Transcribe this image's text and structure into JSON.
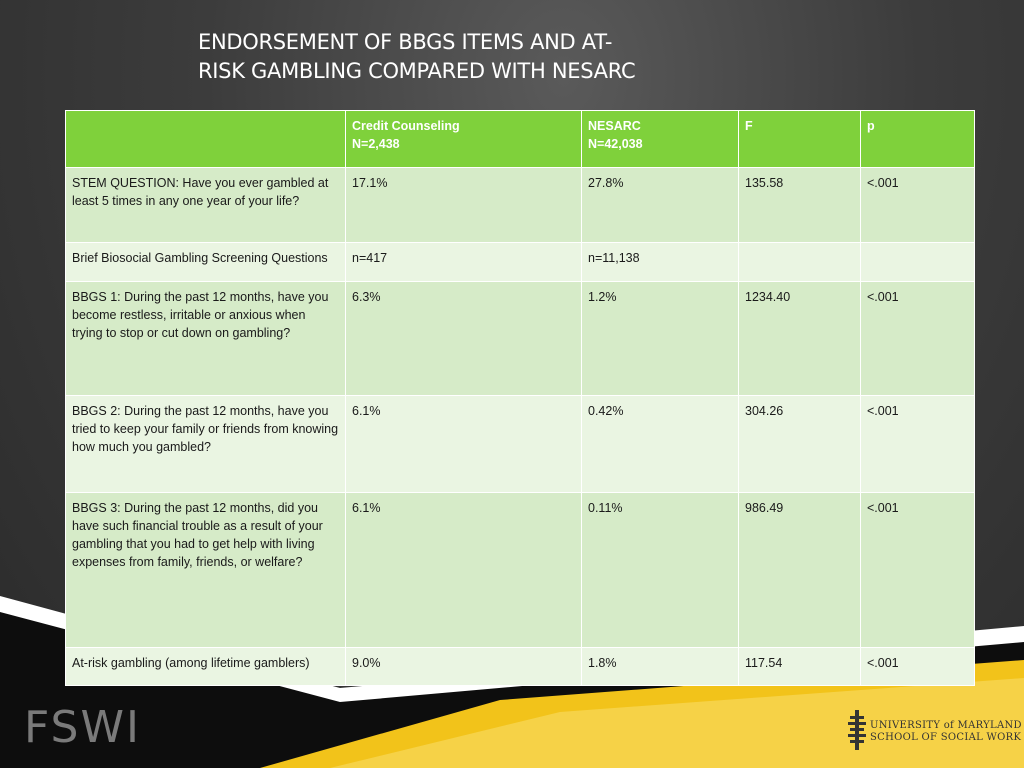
{
  "title": "ENDORSEMENT OF BBGS ITEMS AND AT-RISK GAMBLING COMPARED WITH NESARC",
  "title_line1": "ENDORSEMENT OF BBGS ITEMS AND AT-",
  "title_line2": "RISK GAMBLING COMPARED WITH NESARC",
  "table": {
    "headers": {
      "col0": "",
      "col1_line1": "Credit Counseling",
      "col1_line2": "N=2,438",
      "col2_line1": "NESARC",
      "col2_line2": "N=42,038",
      "col3": "F",
      "col4": "p"
    },
    "rows": [
      [
        "STEM QUESTION: Have you ever gambled at least 5 times in any one year of your life?",
        "17.1%",
        "27.8%",
        "135.58",
        "<.001"
      ],
      [
        "Brief Biosocial Gambling Screening Questions",
        "n=417",
        "n=11,138",
        "",
        ""
      ],
      [
        "BBGS 1: During the past 12 months, have you become restless, irritable or anxious when trying to stop or cut down on gambling?",
        "6.3%",
        "1.2%",
        "1234.40",
        "<.001"
      ],
      [
        "BBGS 2: During the past 12 months, have you tried to keep your family or friends from knowing how much you gambled?",
        "6.1%",
        "0.42%",
        "304.26",
        "<.001"
      ],
      [
        "BBGS 3: During the past 12 months, did you have such financial trouble as a result of your gambling that you had to get help with living expenses from family, friends, or welfare?",
        "6.1%",
        "0.11%",
        "986.49",
        "<.001"
      ],
      [
        "At-risk gambling (among lifetime gamblers)",
        "9.0%",
        "1.8%",
        "117.54",
        "<.001"
      ]
    ]
  },
  "footer": {
    "left_logo": "FSWI",
    "university_line1": "UNIVERSITY of MARYLAND",
    "university_line2": "SCHOOL OF SOCIAL WORK"
  },
  "colors": {
    "header_green": "#7fd13b",
    "row_green": "#d6ebc8",
    "row_light_green": "#eaf5e2",
    "accent_yellow": "#f2c31a",
    "background": "#3c3c3c"
  }
}
